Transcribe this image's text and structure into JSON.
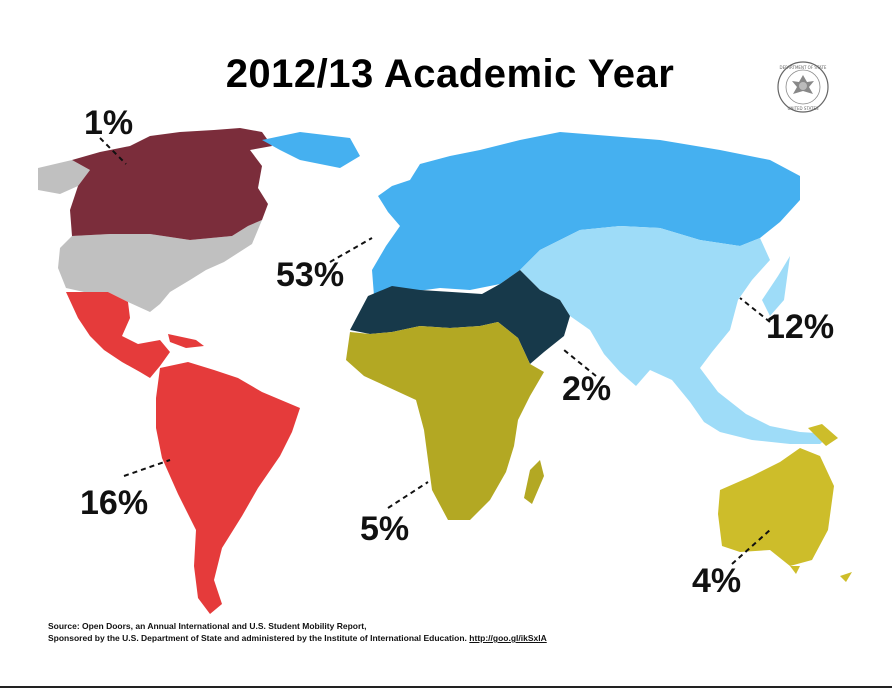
{
  "title": "2012/13 Academic Year",
  "seal": {
    "icon": "department-of-state-seal-icon",
    "text": "DEPARTMENT OF STATE · UNITED STATES OF AMERICA"
  },
  "regions": [
    {
      "name": "Canada",
      "label": "1%",
      "value": 1,
      "color": "#7b2d3b"
    },
    {
      "name": "United States",
      "label": "",
      "color": "#c0c0c0"
    },
    {
      "name": "Latin America",
      "label": "16%",
      "value": 16,
      "color": "#e53b3b"
    },
    {
      "name": "Europe",
      "label": "53%",
      "value": 53,
      "color": "#45b0f0"
    },
    {
      "name": "Middle East & North Africa",
      "label": "2%",
      "value": 2,
      "color": "#17394a"
    },
    {
      "name": "Sub-Saharan Africa",
      "label": "5%",
      "value": 5,
      "color": "#b3a823"
    },
    {
      "name": "Asia",
      "label": "12%",
      "value": 12,
      "color": "#9edcf8"
    },
    {
      "name": "Oceania",
      "label": "4%",
      "value": 4,
      "color": "#cdbd2a"
    }
  ],
  "source": {
    "line1": "Source: Open Doors, an Annual International and U.S. Student Mobility Report,",
    "line2": "Sponsored by the U.S. Department of State and administered by the Institute of International Education.",
    "link": "http://goo.gl/ikSxlA"
  }
}
